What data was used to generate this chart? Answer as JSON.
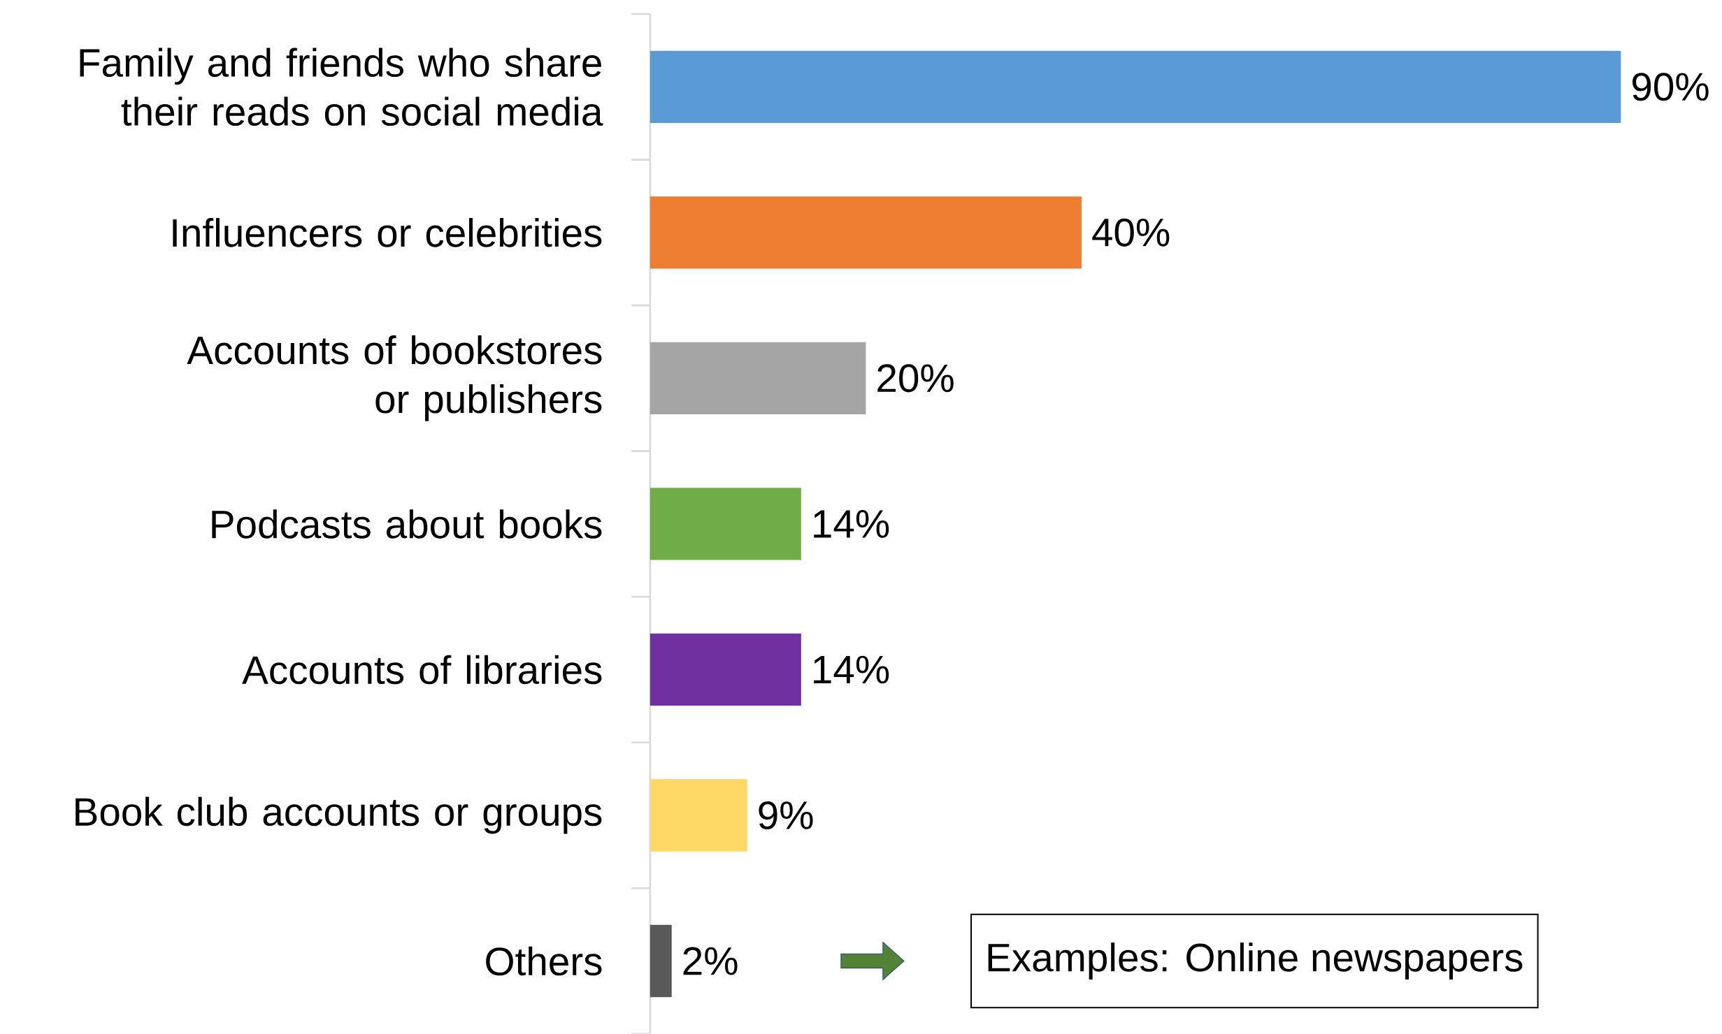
{
  "chart_data": {
    "type": "bar",
    "orientation": "horizontal",
    "categories": [
      "Family and friends who share their reads on social media",
      "Influencers or celebrities",
      "Accounts of bookstores or publishers",
      "Podcasts about books",
      "Accounts of libraries",
      "Book club accounts or groups",
      "Others"
    ],
    "values": [
      90,
      40,
      20,
      14,
      14,
      9,
      2
    ],
    "value_labels": [
      "90%",
      "40%",
      "20%",
      "14%",
      "14%",
      "9%",
      "2%"
    ],
    "colors": [
      "#5b9bd5",
      "#ed7d31",
      "#a5a5a5",
      "#70ad47",
      "#7030a0",
      "#ffd966",
      "#595959"
    ],
    "annotations": [
      "Examples: Online newspapers"
    ]
  }
}
